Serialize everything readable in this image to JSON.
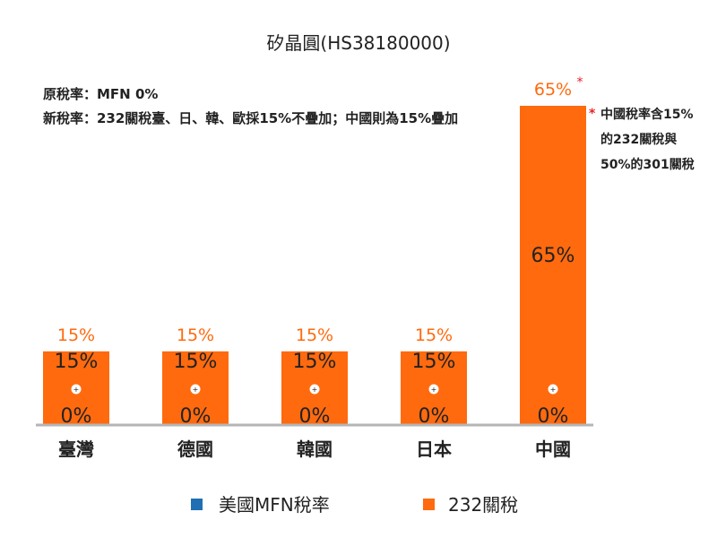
{
  "chart_data": {
    "type": "bar",
    "title": "矽晶圓(HS38180000)",
    "notes": [
      "原稅率：MFN 0%",
      "新稅率：232關稅臺、日、韓、歐採15%不疊加；中國則為15%疊加"
    ],
    "categories": [
      "臺灣",
      "德國",
      "韓國",
      "日本",
      "中國"
    ],
    "series": [
      {
        "name": "美國MFN稅率",
        "values": [
          0,
          0,
          0,
          0,
          0
        ],
        "labels": [
          "0%",
          "0%",
          "0%",
          "0%",
          "0%"
        ]
      },
      {
        "name": "232關稅",
        "values": [
          15,
          15,
          15,
          15,
          65
        ],
        "labels": [
          "15%",
          "15%",
          "15%",
          "15%",
          "65%"
        ]
      }
    ],
    "plus_signs": [
      "+",
      "+",
      "+",
      "+",
      "+"
    ],
    "totals": [
      "15%",
      "15%",
      "15%",
      "15%",
      "65%"
    ],
    "total_marks": [
      "",
      "",
      "",
      "",
      "*"
    ],
    "footnote": {
      "marker": "*",
      "lines": [
        "中國稅率含15%",
        "的232關稅與",
        "50%的301關稅"
      ]
    },
    "ylim": [
      0,
      65
    ],
    "grid": false,
    "legend_position": "bottom",
    "colors": {
      "mfn": "#1f6fb2",
      "s232": "#ff6a0e",
      "total_label": "#ff6a0e",
      "asterisk": "#e8202a",
      "baseline": "#b5b5b5",
      "text": "#222222"
    }
  }
}
